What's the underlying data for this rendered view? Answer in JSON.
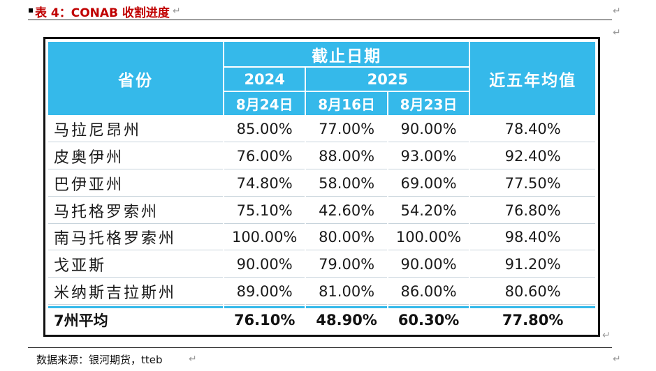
{
  "title": "表 4：CONAB 收割进度",
  "paragraph_mark": "↵",
  "table": {
    "header": {
      "province_label": "省份",
      "deadline_label": "截止日期",
      "five_year_label": "近五年均值",
      "years": [
        "2024",
        "2025"
      ],
      "dates": [
        "8月24日",
        "8月16日",
        "8月23日"
      ]
    },
    "rows": [
      {
        "province": "马拉尼昂州",
        "values": [
          "85.00%",
          "77.00%",
          "90.00%",
          "78.40%"
        ]
      },
      {
        "province": "皮奥伊州",
        "values": [
          "76.00%",
          "88.00%",
          "93.00%",
          "92.40%"
        ]
      },
      {
        "province": "巴伊亚州",
        "values": [
          "74.80%",
          "58.00%",
          "69.00%",
          "77.50%"
        ]
      },
      {
        "province": "马托格罗索州",
        "values": [
          "75.10%",
          "42.60%",
          "54.20%",
          "76.80%"
        ]
      },
      {
        "province": "南马托格罗索州",
        "values": [
          "100.00%",
          "80.00%",
          "100.00%",
          "98.40%"
        ]
      },
      {
        "province": "戈亚斯",
        "values": [
          "90.00%",
          "79.00%",
          "90.00%",
          "91.20%"
        ]
      },
      {
        "province": "米纳斯吉拉斯州",
        "values": [
          "89.00%",
          "81.00%",
          "86.00%",
          "80.60%"
        ]
      }
    ],
    "average": {
      "province": "7州平均",
      "values": [
        "76.10%",
        "48.90%",
        "60.30%",
        "77.80%"
      ]
    }
  },
  "source": "数据来源：银河期货，tteb",
  "colors": {
    "header_bg": "#35b9ea",
    "title": "#c00000"
  }
}
